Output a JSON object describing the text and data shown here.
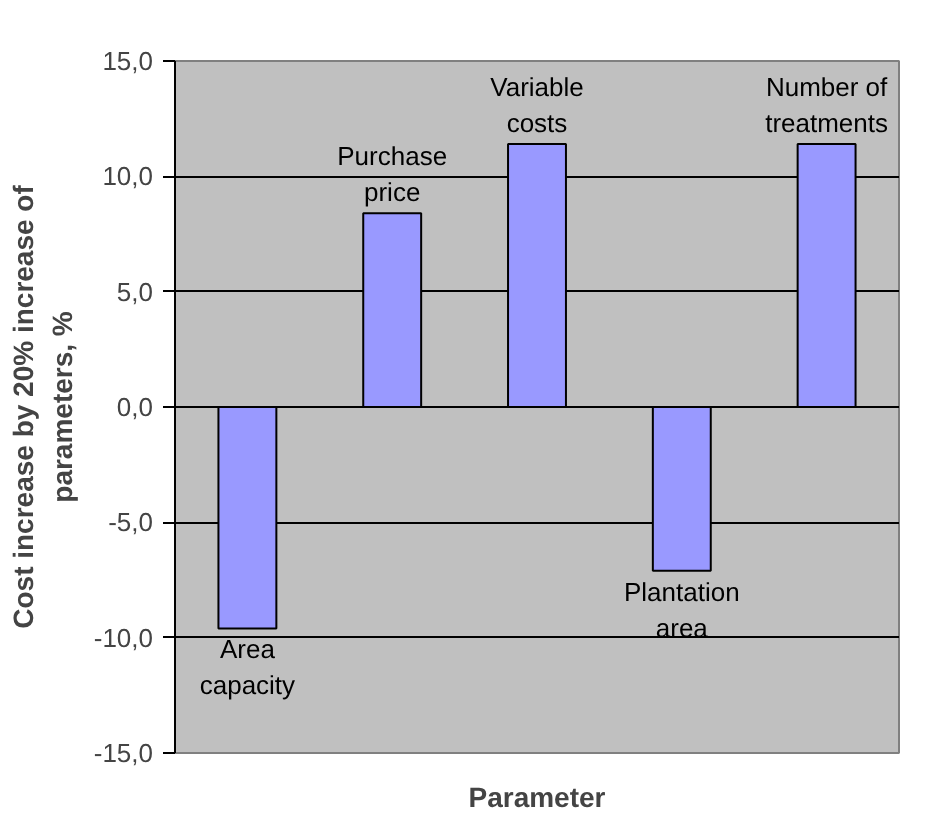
{
  "chart_data": {
    "type": "bar",
    "xlabel": "Parameter",
    "ylabel": "Cost increase by 20% increase of parameters, %",
    "categories": [
      "Area capacity",
      "Purchase price",
      "Variable costs",
      "Plantation area",
      "Number of treatments"
    ],
    "values": [
      -9.6,
      8.4,
      11.4,
      -7.1,
      11.4
    ],
    "color": "#9999ff",
    "ylim": [
      -15,
      15
    ],
    "yticks": [
      {
        "value": -15,
        "label": "-15,0"
      },
      {
        "value": -10,
        "label": "-10,0"
      },
      {
        "value": -5,
        "label": "-5,0"
      },
      {
        "value": 0,
        "label": "0,0"
      },
      {
        "value": 5,
        "label": "5,0"
      },
      {
        "value": 10,
        "label": "10,0"
      },
      {
        "value": 15,
        "label": "15,0"
      }
    ],
    "grid": "y",
    "tick_labels": "y"
  }
}
